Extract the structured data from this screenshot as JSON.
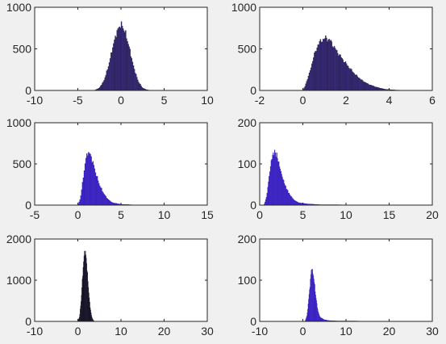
{
  "chart_data": [
    {
      "type": "bar",
      "title": "",
      "xlabel": "",
      "ylabel": "",
      "xlim": [
        -10,
        10
      ],
      "ylim": [
        0,
        1000
      ],
      "xticks": [
        -10,
        -5,
        0,
        5,
        10
      ],
      "yticks": [
        0,
        500,
        1000
      ],
      "bar_color": "#3d2a96",
      "edge_color": "#1a1a1a",
      "bin_width": 0.1,
      "x": [
        -3.0,
        -2.5,
        -2.0,
        -1.5,
        -1.0,
        -0.5,
        0.0,
        0.5,
        1.0,
        1.5,
        2.0,
        2.5,
        3.0,
        3.5
      ],
      "values": [
        5,
        30,
        110,
        270,
        500,
        700,
        800,
        700,
        500,
        270,
        110,
        30,
        8,
        0
      ]
    },
    {
      "type": "bar",
      "title": "",
      "xlabel": "",
      "ylabel": "",
      "xlim": [
        -2,
        6
      ],
      "ylim": [
        0,
        1000
      ],
      "xticks": [
        -2,
        0,
        2,
        4,
        6
      ],
      "yticks": [
        0,
        500,
        1000
      ],
      "bar_color": "#3d2a96",
      "edge_color": "#1a1a1a",
      "bin_width": 0.04,
      "x": [
        0.0,
        0.1,
        0.3,
        0.5,
        0.7,
        0.9,
        1.1,
        1.3,
        1.5,
        1.8,
        2.1,
        2.4,
        2.7,
        3.0,
        3.4,
        3.8,
        4.3,
        5.0
      ],
      "values": [
        0,
        50,
        200,
        400,
        550,
        610,
        630,
        590,
        500,
        390,
        290,
        200,
        130,
        80,
        40,
        15,
        5,
        0
      ]
    },
    {
      "type": "bar",
      "title": "",
      "xlabel": "",
      "ylabel": "",
      "xlim": [
        -5,
        15
      ],
      "ylim": [
        0,
        1000
      ],
      "xticks": [
        -5,
        0,
        5,
        10,
        15
      ],
      "yticks": [
        0,
        500,
        1000
      ],
      "bar_color": "#3a22c0",
      "edge_color": "#3a22c0",
      "bin_width": 0.1,
      "x": [
        0.0,
        0.3,
        0.6,
        0.9,
        1.2,
        1.5,
        1.8,
        2.1,
        2.5,
        3.0,
        3.5,
        4.0,
        5.0,
        6.5,
        8.0,
        10.0
      ],
      "values": [
        0,
        80,
        300,
        550,
        650,
        600,
        500,
        380,
        250,
        140,
        70,
        30,
        10,
        3,
        1,
        0
      ]
    },
    {
      "type": "bar",
      "title": "",
      "xlabel": "",
      "ylabel": "",
      "xlim": [
        0,
        20
      ],
      "ylim": [
        0,
        200
      ],
      "xticks": [
        0,
        5,
        10,
        15,
        20
      ],
      "yticks": [
        0,
        100,
        200
      ],
      "bar_color": "#3a22c0",
      "edge_color": "#3a22c0",
      "bin_width": 0.08,
      "x": [
        0.5,
        0.8,
        1.1,
        1.4,
        1.7,
        2.0,
        2.3,
        2.6,
        3.0,
        3.5,
        4.0,
        4.5,
        5.5,
        7.0,
        9.0,
        11.0,
        13.0,
        15.0
      ],
      "values": [
        0,
        20,
        70,
        115,
        130,
        120,
        95,
        70,
        45,
        25,
        12,
        6,
        3,
        1,
        1,
        0,
        0,
        0
      ]
    },
    {
      "type": "bar",
      "title": "",
      "xlabel": "",
      "ylabel": "",
      "xlim": [
        -10,
        30
      ],
      "ylim": [
        0,
        2000
      ],
      "xticks": [
        -10,
        0,
        10,
        20,
        30
      ],
      "yticks": [
        0,
        1000,
        2000
      ],
      "bar_color": "#241a52",
      "edge_color": "#111111",
      "bin_width": 0.1,
      "x": [
        0.0,
        0.4,
        0.8,
        1.2,
        1.6,
        2.0,
        2.4,
        2.8,
        3.2,
        3.6,
        4.0
      ],
      "values": [
        0,
        120,
        550,
        1250,
        1750,
        1500,
        900,
        380,
        110,
        20,
        0
      ]
    },
    {
      "type": "bar",
      "title": "",
      "xlabel": "",
      "ylabel": "",
      "xlim": [
        -10,
        30
      ],
      "ylim": [
        0,
        200
      ],
      "xticks": [
        -10,
        0,
        10,
        20,
        30
      ],
      "yticks": [
        0,
        100,
        200
      ],
      "bar_color": "#3a22c0",
      "edge_color": "#3a22c0",
      "bin_width": 0.1,
      "x": [
        0.5,
        1.0,
        1.5,
        2.0,
        2.5,
        3.0,
        3.5,
        4.0,
        5.0,
        6.0,
        8.0,
        12.0,
        16.0,
        20.0,
        24.0
      ],
      "values": [
        0,
        15,
        70,
        130,
        110,
        60,
        25,
        10,
        4,
        2,
        1,
        1,
        0,
        0,
        0
      ]
    }
  ]
}
